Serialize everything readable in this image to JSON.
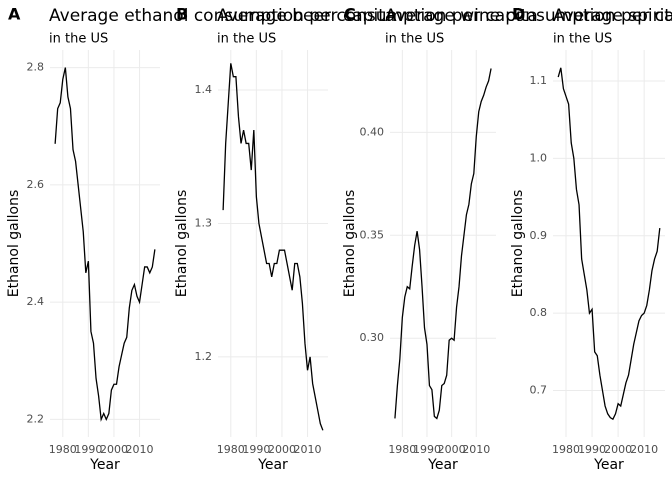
{
  "chart_data": [
    {
      "type": "line",
      "tag": "A",
      "title": "Average ethanol consumption per capita",
      "subtitle": "in the US",
      "x_label": "Year",
      "y_label": "Ethanol gallons",
      "x": [
        1977,
        1978,
        1979,
        1980,
        1981,
        1982,
        1983,
        1984,
        1985,
        1986,
        1987,
        1988,
        1989,
        1990,
        1991,
        1992,
        1993,
        1994,
        1995,
        1996,
        1997,
        1998,
        1999,
        2000,
        2001,
        2002,
        2003,
        2004,
        2005,
        2006,
        2007,
        2008,
        2009,
        2010,
        2011,
        2012,
        2013,
        2014,
        2015,
        2016
      ],
      "values": [
        2.67,
        2.73,
        2.74,
        2.78,
        2.8,
        2.75,
        2.73,
        2.66,
        2.64,
        2.6,
        2.56,
        2.52,
        2.45,
        2.47,
        2.35,
        2.33,
        2.27,
        2.24,
        2.2,
        2.21,
        2.2,
        2.21,
        2.25,
        2.26,
        2.26,
        2.29,
        2.31,
        2.33,
        2.34,
        2.39,
        2.42,
        2.43,
        2.41,
        2.4,
        2.43,
        2.46,
        2.46,
        2.45,
        2.46,
        2.49
      ],
      "color": "#000000",
      "xlim": [
        1975,
        2018
      ],
      "xticks": [
        1980,
        1990,
        2000,
        2010
      ],
      "ylim": [
        2.17,
        2.83
      ],
      "yticks": [
        {
          "value": 2.2,
          "label": "2.2"
        },
        {
          "value": 2.4,
          "label": "2.4"
        },
        {
          "value": 2.6,
          "label": "2.6"
        },
        {
          "value": 2.8,
          "label": "2.8"
        }
      ],
      "grid": true
    },
    {
      "type": "line",
      "tag": "B",
      "title": "Average beer consumption per capita",
      "subtitle": "in the US",
      "x_label": "Year",
      "y_label": "Ethanol gallons",
      "x": [
        1977,
        1978,
        1979,
        1980,
        1981,
        1982,
        1983,
        1984,
        1985,
        1986,
        1987,
        1988,
        1989,
        1990,
        1991,
        1992,
        1993,
        1994,
        1995,
        1996,
        1997,
        1998,
        1999,
        2000,
        2001,
        2002,
        2003,
        2004,
        2005,
        2006,
        2007,
        2008,
        2009,
        2010,
        2011,
        2012,
        2013,
        2014,
        2015,
        2016
      ],
      "values": [
        1.31,
        1.36,
        1.39,
        1.42,
        1.41,
        1.41,
        1.38,
        1.36,
        1.37,
        1.36,
        1.36,
        1.34,
        1.37,
        1.32,
        1.3,
        1.29,
        1.28,
        1.27,
        1.27,
        1.26,
        1.27,
        1.27,
        1.28,
        1.28,
        1.28,
        1.27,
        1.26,
        1.25,
        1.27,
        1.27,
        1.26,
        1.24,
        1.21,
        1.19,
        1.2,
        1.18,
        1.17,
        1.16,
        1.15,
        1.145
      ],
      "color": "#000000",
      "xlim": [
        1975,
        2018
      ],
      "xticks": [
        1980,
        1990,
        2000,
        2010
      ],
      "ylim": [
        1.14,
        1.43
      ],
      "yticks": [
        1.2,
        1.3,
        1.4
      ],
      "grid": true
    },
    {
      "type": "line",
      "tag": "C",
      "title": "Average wine consumption per capita",
      "subtitle": "in the US",
      "x_label": "Year",
      "y_label": "Ethanol gallons",
      "x": [
        1977,
        1978,
        1979,
        1980,
        1981,
        1982,
        1983,
        1984,
        1985,
        1986,
        1987,
        1988,
        1989,
        1990,
        1991,
        1992,
        1993,
        1994,
        1995,
        1996,
        1997,
        1998,
        1999,
        2000,
        2001,
        2002,
        2003,
        2004,
        2005,
        2006,
        2007,
        2008,
        2009,
        2010,
        2011,
        2012,
        2013,
        2014,
        2015,
        2016
      ],
      "values": [
        0.261,
        0.277,
        0.29,
        0.31,
        0.32,
        0.325,
        0.324,
        0.335,
        0.345,
        0.352,
        0.343,
        0.325,
        0.305,
        0.297,
        0.277,
        0.275,
        0.262,
        0.261,
        0.265,
        0.277,
        0.278,
        0.282,
        0.299,
        0.3,
        0.299,
        0.315,
        0.325,
        0.34,
        0.35,
        0.36,
        0.365,
        0.375,
        0.38,
        0.398,
        0.41,
        0.415,
        0.418,
        0.422,
        0.425,
        0.431
      ],
      "color": "#000000",
      "xlim": [
        1975,
        2018
      ],
      "xticks": [
        1980,
        1990,
        2000,
        2010
      ],
      "ylim": [
        0.252,
        0.44
      ],
      "yticks": [
        {
          "value": 0.3,
          "label": "0.30"
        },
        {
          "value": 0.35,
          "label": "0.35"
        },
        {
          "value": 0.4,
          "label": "0.40"
        }
      ],
      "grid": true
    },
    {
      "type": "line",
      "tag": "D",
      "title": "Average spirits consumption per capita",
      "subtitle": "in the US",
      "x_label": "Year",
      "y_label": "Ethanol gallons",
      "x": [
        1977,
        1978,
        1979,
        1980,
        1981,
        1982,
        1983,
        1984,
        1985,
        1986,
        1987,
        1988,
        1989,
        1990,
        1991,
        1992,
        1993,
        1994,
        1995,
        1996,
        1997,
        1998,
        1999,
        2000,
        2001,
        2002,
        2003,
        2004,
        2005,
        2006,
        2007,
        2008,
        2009,
        2010,
        2011,
        2012,
        2013,
        2014,
        2015,
        2016
      ],
      "values": [
        1.105,
        1.117,
        1.09,
        1.08,
        1.07,
        1.02,
        1.0,
        0.96,
        0.94,
        0.87,
        0.85,
        0.83,
        0.8,
        0.805,
        0.75,
        0.745,
        0.72,
        0.7,
        0.68,
        0.67,
        0.665,
        0.663,
        0.67,
        0.683,
        0.68,
        0.695,
        0.71,
        0.72,
        0.74,
        0.76,
        0.775,
        0.79,
        0.797,
        0.8,
        0.81,
        0.83,
        0.855,
        0.87,
        0.88,
        0.91
      ],
      "color": "#000000",
      "xlim": [
        1975,
        2018
      ],
      "xticks": [
        1980,
        1990,
        2000,
        2010
      ],
      "ylim": [
        0.64,
        1.14
      ],
      "yticks": [
        0.7,
        0.8,
        0.9,
        {
          "value": 1.0,
          "label": "1.0"
        },
        1.1
      ],
      "grid": true
    }
  ]
}
